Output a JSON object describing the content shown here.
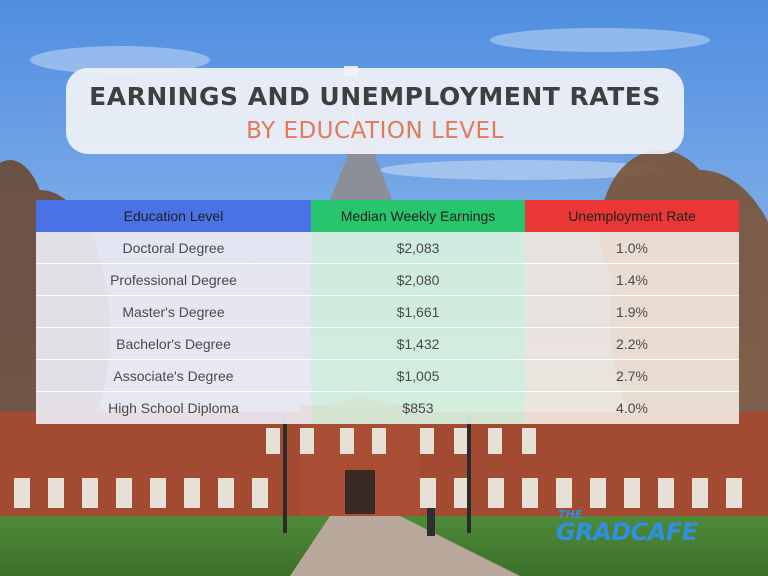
{
  "title": {
    "line1": "EARNINGS AND UNEMPLOYMENT RATES",
    "line2": "BY EDUCATION LEVEL"
  },
  "colors": {
    "title_text": "#3f3f3f",
    "subtitle_text": "#e2795a",
    "header_education": "#4a72e6",
    "header_earnings": "#27c56d",
    "header_unemployment": "#e93636",
    "logo": "#2f8fe0"
  },
  "table": {
    "headers": [
      "Education Level",
      "Median Weekly Earnings",
      "Unemployment Rate"
    ],
    "rows": [
      [
        "Doctoral Degree",
        "$2,083",
        "1.0%"
      ],
      [
        "Professional Degree",
        "$2,080",
        "1.4%"
      ],
      [
        "Master's Degree",
        "$1,661",
        "1.9%"
      ],
      [
        "Bachelor's Degree",
        "$1,432",
        "2.2%"
      ],
      [
        "Associate's Degree",
        "$1,005",
        "2.7%"
      ],
      [
        "High School Diploma",
        "$853",
        "4.0%"
      ]
    ]
  },
  "logo": {
    "the": "THE",
    "name": "GRADCAFE"
  }
}
